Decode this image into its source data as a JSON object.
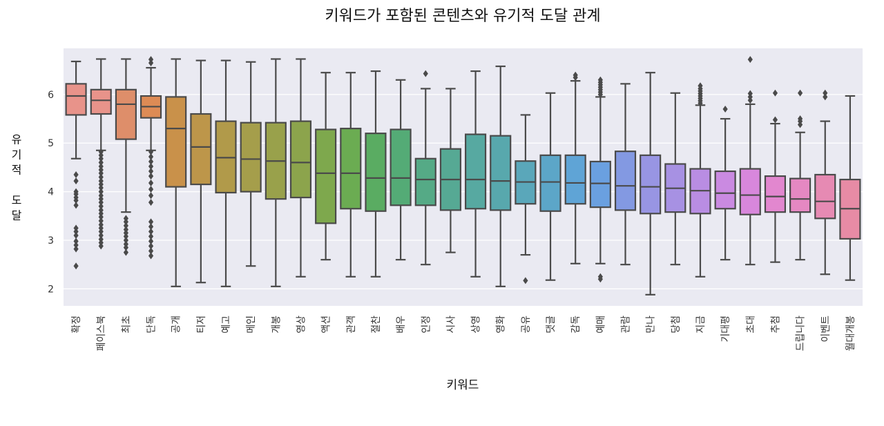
{
  "chart_data": {
    "type": "box",
    "title": "키워드가 포함된 콘텐츠와 유기적 도달 관계",
    "xlabel": "키워드",
    "ylabel": "유기적 도달",
    "ylim": [
      1.65,
      6.95
    ],
    "yticks": [
      2,
      3,
      4,
      5,
      6
    ],
    "grid": true,
    "categories": [
      "확정",
      "페이스북",
      "최초",
      "단독",
      "공개",
      "티저",
      "예고",
      "메인",
      "개봉",
      "영상",
      "액션",
      "관객",
      "절찬",
      "배우",
      "인정",
      "시사",
      "상영",
      "영화",
      "공유",
      "댓글",
      "감독",
      "예매",
      "관람",
      "만나",
      "당첨",
      "지금",
      "기대평",
      "초대",
      "추첨",
      "드립니다",
      "이벤트",
      "월대개봉"
    ],
    "boxes": [
      {
        "q1": 5.58,
        "median": 5.97,
        "q3": 6.22,
        "whislo": 4.68,
        "whishi": 6.68,
        "fliers": [
          4.35,
          4.22,
          4.0,
          3.95,
          3.88,
          3.82,
          3.72,
          3.25,
          3.18,
          3.1,
          2.98,
          2.9,
          2.82,
          2.47
        ],
        "color": "#e8938a"
      },
      {
        "q1": 5.6,
        "median": 5.88,
        "q3": 6.1,
        "whislo": 4.85,
        "whishi": 6.73,
        "fliers": [
          4.82,
          4.75,
          4.68,
          4.6,
          4.52,
          4.45,
          4.38,
          4.3,
          4.22,
          4.15,
          4.08,
          4.0,
          3.92,
          3.85,
          3.78,
          3.7,
          3.62,
          3.55,
          3.48,
          3.4,
          3.32,
          3.25,
          3.18,
          3.1,
          3.02,
          2.95,
          2.88
        ],
        "color": "#e8938a"
      },
      {
        "q1": 5.08,
        "median": 5.8,
        "q3": 6.1,
        "whislo": 3.58,
        "whishi": 6.73,
        "fliers": [
          3.45,
          3.38,
          3.3,
          3.22,
          3.15,
          3.08,
          3.0,
          2.92,
          2.85,
          2.75
        ],
        "color": "#de8e6a"
      },
      {
        "q1": 5.52,
        "median": 5.75,
        "q3": 5.97,
        "whislo": 4.85,
        "whishi": 6.55,
        "fliers": [
          6.72,
          6.65,
          4.82,
          4.72,
          4.62,
          4.52,
          4.42,
          4.32,
          4.18,
          4.05,
          3.92,
          3.78,
          3.38,
          3.28,
          3.18,
          3.08,
          2.98,
          2.88,
          2.78,
          2.68
        ],
        "color": "#dd8b55"
      },
      {
        "q1": 4.1,
        "median": 5.3,
        "q3": 5.95,
        "whislo": 2.05,
        "whishi": 6.73,
        "fliers": [],
        "color": "#c9914a"
      },
      {
        "q1": 4.15,
        "median": 4.92,
        "q3": 5.6,
        "whislo": 2.13,
        "whishi": 6.7,
        "fliers": [],
        "color": "#bd964a"
      },
      {
        "q1": 3.98,
        "median": 4.7,
        "q3": 5.45,
        "whislo": 2.05,
        "whishi": 6.7,
        "fliers": [],
        "color": "#b19a4a"
      },
      {
        "q1": 4.0,
        "median": 4.67,
        "q3": 5.42,
        "whislo": 2.47,
        "whishi": 6.67,
        "fliers": [],
        "color": "#a59e4b"
      },
      {
        "q1": 3.85,
        "median": 4.63,
        "q3": 5.42,
        "whislo": 2.05,
        "whishi": 6.73,
        "fliers": [],
        "color": "#99a14b"
      },
      {
        "q1": 3.88,
        "median": 4.6,
        "q3": 5.45,
        "whislo": 2.25,
        "whishi": 6.73,
        "fliers": [],
        "color": "#8ca44c"
      },
      {
        "q1": 3.35,
        "median": 4.38,
        "q3": 5.28,
        "whislo": 2.6,
        "whishi": 6.45,
        "fliers": [],
        "color": "#7ea84d"
      },
      {
        "q1": 3.65,
        "median": 4.38,
        "q3": 5.3,
        "whislo": 2.25,
        "whishi": 6.45,
        "fliers": [],
        "color": "#6bac52"
      },
      {
        "q1": 3.6,
        "median": 4.28,
        "q3": 5.2,
        "whislo": 2.25,
        "whishi": 6.48,
        "fliers": [],
        "color": "#5aac62"
      },
      {
        "q1": 3.72,
        "median": 4.28,
        "q3": 5.28,
        "whislo": 2.6,
        "whishi": 6.3,
        "fliers": [],
        "color": "#54ab76"
      },
      {
        "q1": 3.72,
        "median": 4.25,
        "q3": 4.68,
        "whislo": 2.5,
        "whishi": 6.12,
        "fliers": [
          6.43
        ],
        "color": "#55aa86"
      },
      {
        "q1": 3.62,
        "median": 4.25,
        "q3": 4.88,
        "whislo": 2.75,
        "whishi": 6.12,
        "fliers": [],
        "color": "#56a994"
      },
      {
        "q1": 3.65,
        "median": 4.25,
        "q3": 5.18,
        "whislo": 2.25,
        "whishi": 6.48,
        "fliers": [],
        "color": "#57a9a1"
      },
      {
        "q1": 3.62,
        "median": 4.22,
        "q3": 5.15,
        "whislo": 2.05,
        "whishi": 6.58,
        "fliers": [],
        "color": "#58a8ad"
      },
      {
        "q1": 3.75,
        "median": 4.2,
        "q3": 4.63,
        "whislo": 2.7,
        "whishi": 5.58,
        "fliers": [
          2.17
        ],
        "color": "#5aa7ba"
      },
      {
        "q1": 3.6,
        "median": 4.2,
        "q3": 4.75,
        "whislo": 2.18,
        "whishi": 6.03,
        "fliers": [],
        "color": "#5ca6c8"
      },
      {
        "q1": 3.75,
        "median": 4.18,
        "q3": 4.75,
        "whislo": 2.52,
        "whishi": 6.28,
        "fliers": [
          6.35,
          6.4
        ],
        "color": "#5fa4d6"
      },
      {
        "q1": 3.68,
        "median": 4.17,
        "q3": 4.62,
        "whislo": 2.52,
        "whishi": 5.95,
        "fliers": [
          2.2,
          2.25,
          6.0,
          6.05,
          6.1,
          6.15,
          6.2,
          6.25,
          6.3
        ],
        "color": "#6aa0e0"
      },
      {
        "q1": 3.62,
        "median": 4.12,
        "q3": 4.83,
        "whislo": 2.5,
        "whishi": 6.22,
        "fliers": [],
        "color": "#8399e2"
      },
      {
        "q1": 3.55,
        "median": 4.1,
        "q3": 4.75,
        "whislo": 1.88,
        "whishi": 6.45,
        "fliers": [],
        "color": "#9895e3"
      },
      {
        "q1": 3.58,
        "median": 4.07,
        "q3": 4.57,
        "whislo": 2.5,
        "whishi": 6.03,
        "fliers": [],
        "color": "#a791e3"
      },
      {
        "q1": 3.55,
        "median": 4.02,
        "q3": 4.47,
        "whislo": 2.25,
        "whishi": 5.78,
        "fliers": [
          5.82,
          5.87,
          5.92,
          5.97,
          6.02,
          6.07,
          6.12,
          6.18
        ],
        "color": "#b98de3"
      },
      {
        "q1": 3.65,
        "median": 3.97,
        "q3": 4.42,
        "whislo": 2.6,
        "whishi": 5.5,
        "fliers": [
          5.7
        ],
        "color": "#ca8ae1"
      },
      {
        "q1": 3.53,
        "median": 3.93,
        "q3": 4.47,
        "whislo": 2.5,
        "whishi": 5.8,
        "fliers": [
          5.88,
          5.95,
          6.02,
          6.72
        ],
        "color": "#d887dc"
      },
      {
        "q1": 3.58,
        "median": 3.9,
        "q3": 4.32,
        "whislo": 2.55,
        "whishi": 5.4,
        "fliers": [
          5.48,
          6.03
        ],
        "color": "#e287cf"
      },
      {
        "q1": 3.58,
        "median": 3.85,
        "q3": 4.27,
        "whislo": 2.6,
        "whishi": 5.22,
        "fliers": [
          5.38,
          5.45,
          5.5,
          6.03
        ],
        "color": "#e588c2"
      },
      {
        "q1": 3.45,
        "median": 3.8,
        "q3": 4.35,
        "whislo": 2.3,
        "whishi": 5.45,
        "fliers": [
          5.95,
          6.03
        ],
        "color": "#e68ab3"
      },
      {
        "q1": 3.03,
        "median": 3.65,
        "q3": 4.25,
        "whislo": 2.18,
        "whishi": 5.97,
        "fliers": [],
        "color": "#e78ba5"
      }
    ],
    "colors": {
      "plot_bg": "#eaeaf2",
      "grid": "#ffffff",
      "box_edge": "#4a4a4a"
    }
  }
}
